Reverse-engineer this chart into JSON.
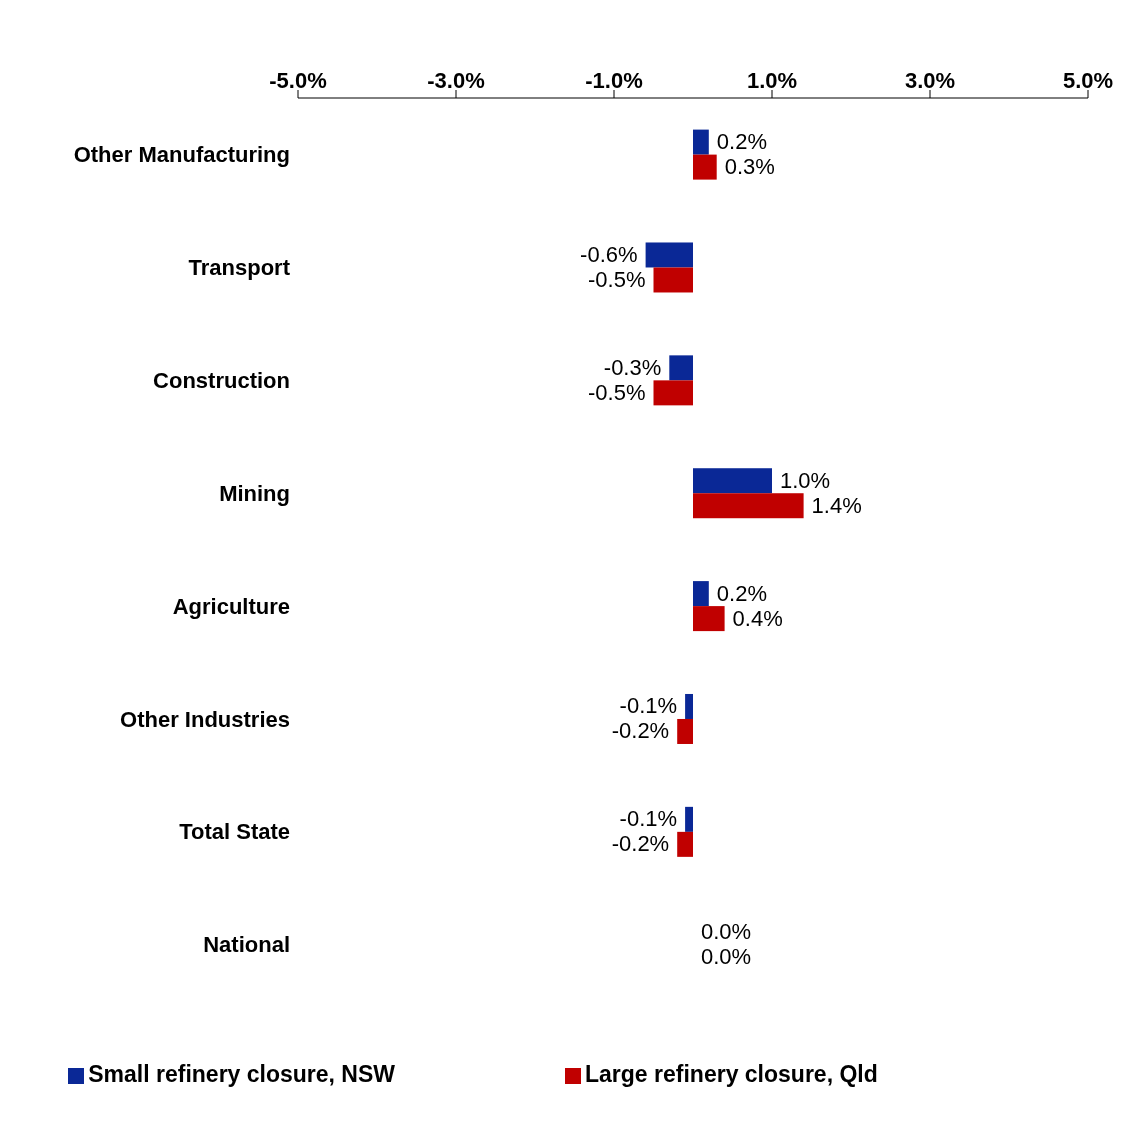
{
  "chart_data": {
    "type": "bar",
    "orientation": "horizontal",
    "categories": [
      "Other Manufacturing",
      "Transport",
      "Construction",
      "Mining",
      "Agriculture",
      "Other Industries",
      "Total State",
      "National"
    ],
    "series": [
      {
        "name": "Small refinery closure, NSW",
        "color": "#0a2896",
        "values": [
          0.2,
          -0.6,
          -0.3,
          1.0,
          0.2,
          -0.1,
          -0.1,
          0.0
        ],
        "value_labels": [
          "0.2%",
          "-0.6%",
          "-0.3%",
          "1.0%",
          "0.2%",
          "-0.1%",
          "-0.1%",
          "0.0%"
        ]
      },
      {
        "name": "Large refinery closure, Qld",
        "color": "#c00000",
        "values": [
          0.3,
          -0.5,
          -0.5,
          1.4,
          0.4,
          -0.2,
          -0.2,
          0.0
        ],
        "value_labels": [
          "0.3%",
          "-0.5%",
          "-0.5%",
          "1.4%",
          "0.4%",
          "-0.2%",
          "-0.2%",
          "0.0%"
        ]
      }
    ],
    "xlim": [
      -5,
      5
    ],
    "xticks": [
      {
        "value": -5,
        "label": "-5.0%"
      },
      {
        "value": -3,
        "label": "-3.0%"
      },
      {
        "value": -1,
        "label": "-1.0%"
      },
      {
        "value": 1,
        "label": "1.0%"
      },
      {
        "value": 3,
        "label": "3.0%"
      },
      {
        "value": 5,
        "label": "5.0%"
      }
    ],
    "grid": false,
    "legend": "bottom"
  }
}
